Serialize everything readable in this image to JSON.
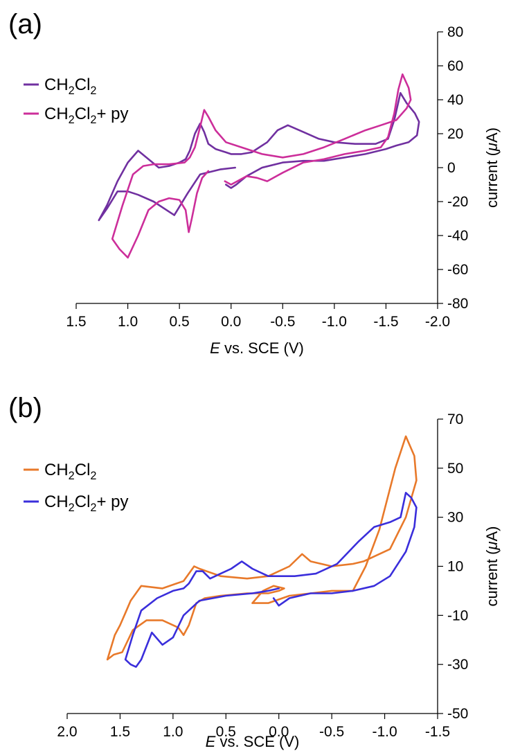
{
  "chart_data": [
    {
      "panel_label": "(a)",
      "type": "line",
      "xlabel_italic": "E",
      "xlabel_rest": " vs. SCE (V)",
      "ylabel_pre": "current (",
      "ylabel_mu": "μ",
      "ylabel_post": "A)",
      "x_reversed": true,
      "xlim": [
        1.5,
        -2.0
      ],
      "ylim": [
        -80,
        80
      ],
      "x_ticks": [
        1.5,
        1.0,
        0.5,
        0.0,
        -0.5,
        -1.0,
        -1.5,
        -2.0
      ],
      "x_tick_labels": [
        "1.5",
        "1.0",
        "0.5",
        "0.0",
        "-0.5",
        "-1.0",
        "-1.5",
        "-2.0"
      ],
      "y_ticks": [
        80,
        60,
        40,
        20,
        0,
        -20,
        -40,
        -60,
        -80
      ],
      "y_tick_labels": [
        "80",
        "60",
        "40",
        "20",
        "0",
        "-20",
        "-40",
        "-60",
        "-80"
      ],
      "y_axis_side": "right",
      "grid": false,
      "legend_position": "top-left",
      "legend": [
        {
          "main": "CH",
          "sub1": "2",
          "mid": "Cl",
          "sub2": "2",
          "suffix": "",
          "color": "#7030A0"
        },
        {
          "main": "CH",
          "sub1": "2",
          "mid": "Cl",
          "sub2": "2",
          "suffix": "+ py",
          "color": "#CC2E9A"
        }
      ],
      "series": [
        {
          "color": "#7030A0",
          "x": [
            -0.04,
            0.1,
            0.3,
            0.42,
            0.55,
            0.75,
            0.9,
            1.0,
            1.1,
            1.2,
            1.28,
            1.2,
            1.1,
            1.0,
            0.9,
            0.8,
            0.7,
            0.6,
            0.5,
            0.44,
            0.4,
            0.35,
            0.3,
            0.26,
            0.22,
            0.15,
            0.05,
            0.0,
            -0.1,
            -0.2,
            -0.35,
            -0.45,
            -0.55,
            -0.7,
            -0.85,
            -1.0,
            -1.2,
            -1.4,
            -1.52,
            -1.58,
            -1.64,
            -1.7,
            -1.78,
            -1.82,
            -1.8,
            -1.72,
            -1.6,
            -1.5,
            -1.3,
            -1.1,
            -0.9,
            -0.7,
            -0.5,
            -0.3,
            -0.15,
            -0.05,
            0.0,
            0.05
          ],
          "y": [
            0,
            -1,
            -4,
            -15,
            -28,
            -20,
            -16,
            -14,
            -14,
            -24,
            -31,
            -22,
            -8,
            3,
            10,
            5,
            0,
            1,
            3,
            5,
            10,
            20,
            26,
            21,
            14,
            11,
            9,
            8,
            8,
            9,
            15,
            22,
            25,
            21,
            17,
            15,
            14,
            14,
            17,
            28,
            44,
            38,
            32,
            27,
            19,
            15,
            13,
            11,
            8,
            6,
            4,
            4,
            3,
            0,
            -5,
            -10,
            -12,
            -10
          ]
        },
        {
          "color": "#CC2E9A",
          "x": [
            0.06,
            0.0,
            -0.15,
            -0.25,
            -0.35,
            -0.5,
            -0.7,
            -0.9,
            -1.1,
            -1.3,
            -1.45,
            -1.52,
            -1.58,
            -1.62,
            -1.66,
            -1.72,
            -1.74,
            -1.7,
            -1.6,
            -1.45,
            -1.3,
            -1.1,
            -0.9,
            -0.7,
            -0.5,
            -0.3,
            -0.1,
            0.05,
            0.15,
            0.22,
            0.26,
            0.3,
            0.35,
            0.4,
            0.45,
            0.6,
            0.75,
            0.85,
            0.95,
            1.05,
            1.15,
            1.08,
            1.0,
            0.9,
            0.8,
            0.7,
            0.6,
            0.5,
            0.44,
            0.41,
            0.38,
            0.33,
            0.28,
            0.22
          ],
          "y": [
            -8,
            -10,
            -5,
            -6,
            -8,
            -3,
            3,
            5,
            8,
            10,
            12,
            18,
            32,
            46,
            55,
            47,
            40,
            35,
            28,
            25,
            22,
            17,
            12,
            8,
            6,
            8,
            12,
            15,
            22,
            30,
            34,
            24,
            12,
            6,
            3,
            2,
            2,
            1,
            -4,
            -22,
            -42,
            -48,
            -53,
            -40,
            -25,
            -20,
            -18,
            -19,
            -25,
            -38,
            -30,
            -15,
            -6,
            -2
          ]
        }
      ]
    },
    {
      "panel_label": "(b)",
      "type": "line",
      "xlabel_italic": "E",
      "xlabel_rest": " vs. SCE (V)",
      "ylabel_pre": "current (",
      "ylabel_mu": "μ",
      "ylabel_post": "A)",
      "x_reversed": true,
      "xlim": [
        2.0,
        -1.5
      ],
      "ylim": [
        -50,
        70
      ],
      "x_ticks": [
        2.0,
        1.5,
        1.0,
        0.5,
        0.0,
        -0.5,
        -1.0,
        -1.5
      ],
      "x_tick_labels": [
        "2.0",
        "1.5",
        "1.0",
        "0.5",
        "0.0",
        "-0.5",
        "-1.0",
        "-1.5"
      ],
      "y_ticks": [
        70,
        50,
        30,
        10,
        -10,
        -30,
        -50
      ],
      "y_tick_labels": [
        "70",
        "50",
        "30",
        "10",
        "-10",
        "-30",
        "-50"
      ],
      "y_axis_side": "right",
      "grid": false,
      "legend_position": "top-left",
      "legend": [
        {
          "main": "CH",
          "sub1": "2",
          "mid": "Cl",
          "sub2": "2",
          "suffix": "",
          "color": "#E8792A"
        },
        {
          "main": "CH",
          "sub1": "2",
          "mid": "Cl",
          "sub2": "2",
          "suffix": "+ py",
          "color": "#3A2EDB"
        }
      ],
      "series": [
        {
          "color": "#E8792A",
          "x": [
            0.25,
            0.1,
            -0.1,
            -0.3,
            -0.5,
            -0.7,
            -0.82,
            -0.95,
            -1.1,
            -1.2,
            -1.28,
            -1.3,
            -1.2,
            -1.05,
            -0.9,
            -0.8,
            -0.7,
            -0.5,
            -0.3,
            -0.22,
            -0.1,
            0.1,
            0.3,
            0.55,
            0.75,
            0.8,
            0.9,
            1.1,
            1.3,
            1.4,
            1.45,
            1.5,
            1.55,
            1.62,
            1.56,
            1.48,
            1.38,
            1.25,
            1.1,
            0.95,
            0.9,
            0.85,
            0.78,
            0.7,
            0.55,
            0.3,
            0.1,
            0.0,
            -0.05,
            0.05,
            0.15,
            0.25
          ],
          "y": [
            -5,
            -5,
            -2,
            -1,
            0,
            0,
            10,
            25,
            50,
            63,
            55,
            45,
            30,
            17,
            14,
            12,
            11,
            10,
            12,
            15,
            10,
            6,
            5,
            6,
            9,
            10,
            4,
            1,
            2,
            -4,
            -9,
            -14,
            -18,
            -28,
            -26,
            -25,
            -16,
            -12,
            -12,
            -15,
            -18,
            -14,
            -5,
            -3,
            -2,
            -1,
            -1,
            0,
            1,
            2,
            0,
            -5
          ]
        },
        {
          "color": "#3A2EDB",
          "x": [
            0.0,
            0.1,
            0.25,
            0.5,
            0.75,
            0.9,
            1.0,
            1.1,
            1.2,
            1.3,
            1.35,
            1.4,
            1.45,
            1.38,
            1.3,
            1.15,
            1.0,
            0.9,
            0.85,
            0.78,
            0.72,
            0.65,
            0.55,
            0.45,
            0.35,
            0.25,
            0.1,
            0.0,
            -0.15,
            -0.35,
            -0.55,
            -0.75,
            -0.9,
            -1.05,
            -1.15,
            -1.2,
            -1.25,
            -1.3,
            -1.28,
            -1.2,
            -1.05,
            -0.9,
            -0.7,
            -0.5,
            -0.3,
            -0.1,
            0.0,
            0.05
          ],
          "y": [
            1,
            0,
            -1,
            -2,
            -4,
            -10,
            -19,
            -22,
            -17,
            -28,
            -31,
            -30,
            -28,
            -18,
            -8,
            -3,
            0,
            1,
            3,
            8,
            8,
            5,
            7,
            9,
            12,
            9,
            6,
            6,
            6,
            7,
            11,
            20,
            26,
            28,
            30,
            40,
            38,
            34,
            26,
            16,
            6,
            2,
            0,
            -1,
            -1,
            -3,
            -6,
            -3
          ]
        }
      ]
    }
  ]
}
